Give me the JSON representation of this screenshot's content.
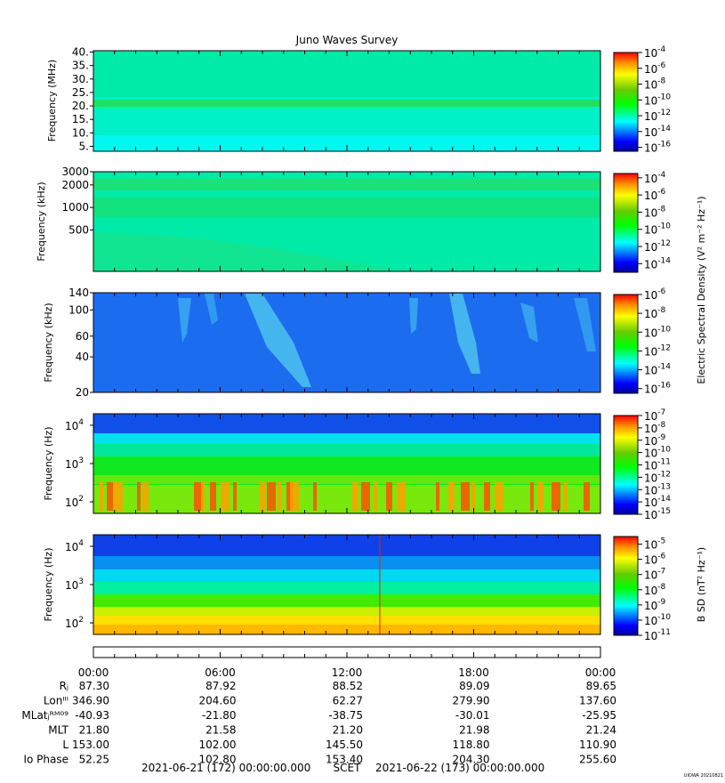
{
  "chart_data": {
    "type": "heatmap",
    "title": "Juno Waves Survey",
    "time_axis": {
      "tick_labels": [
        "00:00",
        "06:00",
        "12:00",
        "18:00",
        "00:00"
      ],
      "start": "2021-06-21 00:00",
      "end": "2021-06-22 00:00"
    },
    "panels": [
      {
        "ylabel": "Frequency (MHz)",
        "yticks": [
          "5.",
          "10.",
          "15.",
          "20.",
          "25.",
          "30.",
          "35.",
          "40."
        ],
        "yrange": [
          3.5,
          40.5
        ],
        "colorbar": {
          "exponents": [
            "-4",
            "-6",
            "-8",
            "-10",
            "-12",
            "-14",
            "-16"
          ],
          "range": [
            -16.5,
            -4
          ]
        }
      },
      {
        "ylabel": "Frequency (kHz)",
        "yticks": [
          "3000",
          "2000",
          "1000",
          "500"
        ],
        "yrange": [
          140,
          3000
        ],
        "colorbar": {
          "exponents": [
            "-4",
            "-6",
            "-8",
            "-10",
            "-12",
            "-14"
          ],
          "range": [
            -15,
            -3.5
          ]
        }
      },
      {
        "ylabel": "Frequency (kHz)",
        "yticks": [
          "140",
          "100",
          "60",
          "40",
          "20"
        ],
        "yrange": [
          20,
          140
        ],
        "colorbar": {
          "exponents": [
            "-6",
            "-8",
            "-10",
            "-12",
            "-14",
            "-16"
          ],
          "range": [
            -16.5,
            -6
          ]
        }
      },
      {
        "ylabel": "Frequency (Hz)",
        "yticks": [
          {
            "base": "10",
            "exp": "4"
          },
          {
            "base": "10",
            "exp": "3"
          },
          {
            "base": "10",
            "exp": "2"
          }
        ],
        "yrange": [
          50,
          20000
        ],
        "colorbar": {
          "exponents": [
            "-7",
            "-8",
            "-9",
            "-10",
            "-11",
            "-12",
            "-13",
            "-14",
            "-15"
          ],
          "range": [
            -15,
            -7
          ]
        }
      },
      {
        "ylabel": "Frequency (Hz)",
        "yticks": [
          {
            "base": "10",
            "exp": "4"
          },
          {
            "base": "10",
            "exp": "3"
          },
          {
            "base": "10",
            "exp": "2"
          }
        ],
        "yrange": [
          50,
          20000
        ],
        "colorbar": {
          "exponents": [
            "-5",
            "-6",
            "-7",
            "-8",
            "-9",
            "-10",
            "-11"
          ],
          "range": [
            -11,
            -4.5
          ]
        }
      }
    ],
    "colorbar_labels": {
      "electric": "Electric Spectral Density (V² m⁻² Hz⁻¹)",
      "magnetic": "B SD (nT² Hz⁻¹)"
    },
    "ephemeris": {
      "rows": [
        {
          "label": "Rⱼ",
          "values": [
            "87.30",
            "87.92",
            "88.52",
            "89.09",
            "89.65"
          ]
        },
        {
          "label": "Lonᴵᴵᴵ",
          "values": [
            "346.90",
            "204.60",
            "62.27",
            "279.90",
            "137.60"
          ]
        },
        {
          "label": "MLatⱼᴿᴹ⁰⁹",
          "values": [
            "-40.93",
            "-21.80",
            "-38.75",
            "-30.01",
            "-25.95"
          ]
        },
        {
          "label": "MLT",
          "values": [
            "21.80",
            "21.58",
            "21.20",
            "21.98",
            "21.24"
          ]
        },
        {
          "label": "L",
          "values": [
            "153.00",
            "102.00",
            "145.50",
            "118.80",
            "110.90"
          ]
        },
        {
          "label": "Io Phase",
          "values": [
            "52.25",
            "102.80",
            "153.40",
            "204.30",
            "255.60"
          ]
        }
      ]
    },
    "footer": {
      "start": "2021-06-21 (172) 00:00:00.000",
      "scet": "SCET",
      "end": "2021-06-22 (173) 00:00:00.000"
    },
    "credit": "UIOWA 20210821"
  }
}
